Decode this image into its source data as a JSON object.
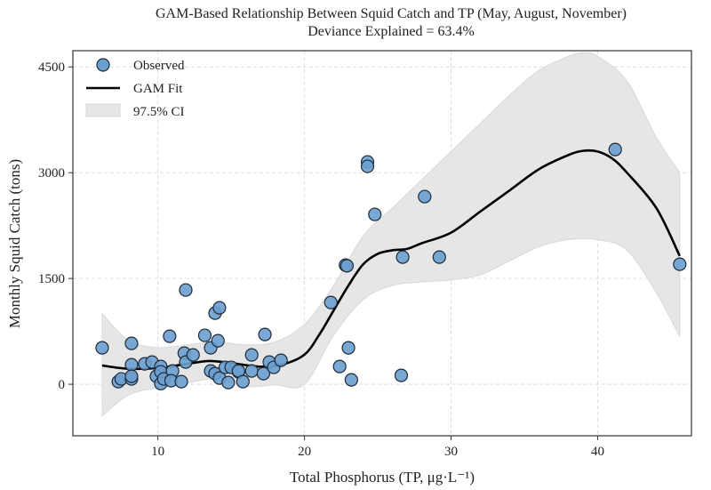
{
  "chart_data": {
    "type": "scatter",
    "title": "GAM-Based Relationship Between Squid Catch and TP (May, August, November)",
    "subtitle": "Deviance Explained = 63.4%",
    "xlabel": "Total Phosphorus (TP, μg·L⁻¹)",
    "ylabel": "Monthly Squid Catch (tons)",
    "xlim": [
      4.2,
      46.4
    ],
    "ylim": [
      -730,
      4730
    ],
    "xticks": [
      10,
      20,
      30,
      40
    ],
    "yticks": [
      0,
      1500,
      3000,
      4500
    ],
    "grid": true,
    "legend_position": "top-left",
    "legend": [
      "Observed",
      "GAM Fit",
      "97.5% CI"
    ],
    "colors": {
      "points": "#6a9fcf",
      "point_edge": "#1e2a38",
      "fit": "#000000",
      "ci": "#e6e6e6"
    },
    "observed": [
      [
        6.2,
        517
      ],
      [
        8.2,
        580
      ],
      [
        7.3,
        38
      ],
      [
        7.5,
        76
      ],
      [
        8.2,
        277
      ],
      [
        8.2,
        76
      ],
      [
        8.2,
        113
      ],
      [
        9.1,
        290
      ],
      [
        9.6,
        315
      ],
      [
        10.2,
        252
      ],
      [
        9.9,
        113
      ],
      [
        10.2,
        177
      ],
      [
        10.2,
        10
      ],
      [
        10.4,
        76
      ],
      [
        10.8,
        681
      ],
      [
        11.0,
        189
      ],
      [
        10.9,
        50
      ],
      [
        11.6,
        38
      ],
      [
        11.9,
        1337
      ],
      [
        11.8,
        441
      ],
      [
        11.9,
        315
      ],
      [
        12.4,
        416
      ],
      [
        13.2,
        694
      ],
      [
        13.6,
        517
      ],
      [
        13.9,
        1009
      ],
      [
        14.2,
        1084
      ],
      [
        14.1,
        618
      ],
      [
        13.6,
        189
      ],
      [
        13.9,
        151
      ],
      [
        14.2,
        88
      ],
      [
        14.8,
        25
      ],
      [
        14.6,
        240
      ],
      [
        15.0,
        240
      ],
      [
        15.5,
        177
      ],
      [
        15.5,
        189
      ],
      [
        15.8,
        38
      ],
      [
        16.4,
        416
      ],
      [
        16.4,
        189
      ],
      [
        17.2,
        151
      ],
      [
        17.3,
        706
      ],
      [
        17.6,
        315
      ],
      [
        17.9,
        240
      ],
      [
        18.4,
        340
      ],
      [
        24.3,
        3153
      ],
      [
        24.3,
        3090
      ],
      [
        24.8,
        2409
      ],
      [
        28.2,
        2661
      ],
      [
        22.8,
        1690
      ],
      [
        22.9,
        1680
      ],
      [
        26.7,
        1803
      ],
      [
        29.2,
        1803
      ],
      [
        21.8,
        1160
      ],
      [
        23.0,
        517
      ],
      [
        22.4,
        252
      ],
      [
        23.2,
        63
      ],
      [
        26.6,
        126
      ],
      [
        41.2,
        3329
      ],
      [
        45.6,
        1702
      ]
    ],
    "gam_fit": [
      [
        6.2,
        265
      ],
      [
        8,
        220
      ],
      [
        10,
        230
      ],
      [
        12,
        290
      ],
      [
        13.5,
        330
      ],
      [
        15,
        300
      ],
      [
        17,
        250
      ],
      [
        18.5,
        280
      ],
      [
        20,
        420
      ],
      [
        21,
        700
      ],
      [
        22,
        1050
      ],
      [
        23,
        1400
      ],
      [
        24,
        1700
      ],
      [
        25,
        1850
      ],
      [
        26,
        1900
      ],
      [
        27,
        1920
      ],
      [
        28,
        2000
      ],
      [
        30,
        2150
      ],
      [
        32,
        2450
      ],
      [
        34,
        2750
      ],
      [
        36,
        3050
      ],
      [
        38,
        3250
      ],
      [
        39,
        3310
      ],
      [
        40,
        3300
      ],
      [
        41,
        3200
      ],
      [
        42,
        3000
      ],
      [
        44,
        2500
      ],
      [
        45.6,
        1820
      ]
    ],
    "ci_upper": [
      [
        6.2,
        1000
      ],
      [
        8,
        620
      ],
      [
        10,
        520
      ],
      [
        12,
        560
      ],
      [
        14,
        600
      ],
      [
        16,
        560
      ],
      [
        18,
        600
      ],
      [
        20,
        850
      ],
      [
        22,
        1400
      ],
      [
        24,
        2100
      ],
      [
        26,
        2500
      ],
      [
        28,
        2900
      ],
      [
        30,
        3300
      ],
      [
        32,
        3700
      ],
      [
        34,
        4100
      ],
      [
        36,
        4450
      ],
      [
        38,
        4650
      ],
      [
        39,
        4700
      ],
      [
        40,
        4650
      ],
      [
        42,
        4300
      ],
      [
        44,
        3500
      ],
      [
        45.6,
        3000
      ]
    ],
    "ci_lower": [
      [
        6.2,
        -450
      ],
      [
        8,
        -150
      ],
      [
        10,
        -50
      ],
      [
        12,
        20
      ],
      [
        14,
        80
      ],
      [
        16,
        -30
      ],
      [
        18,
        -10
      ],
      [
        20,
        0
      ],
      [
        22,
        700
      ],
      [
        24,
        1200
      ],
      [
        26,
        1400
      ],
      [
        28,
        1450
      ],
      [
        30,
        1480
      ],
      [
        32,
        1550
      ],
      [
        34,
        1750
      ],
      [
        36,
        1950
      ],
      [
        38,
        2050
      ],
      [
        40,
        2050
      ],
      [
        42,
        1900
      ],
      [
        44,
        1300
      ],
      [
        45.6,
        680
      ]
    ]
  }
}
